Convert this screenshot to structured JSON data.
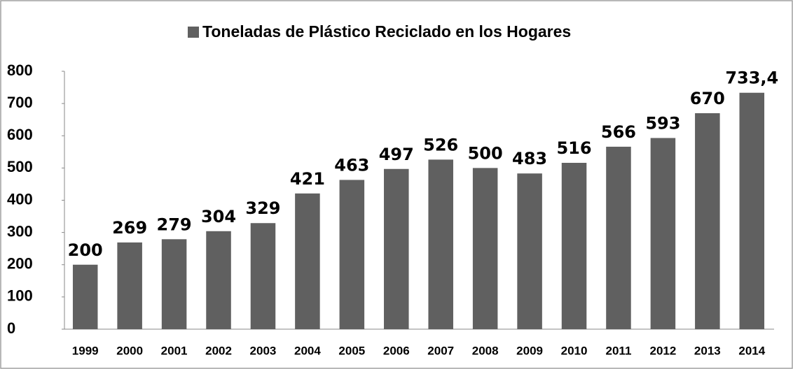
{
  "chart_data": {
    "type": "bar",
    "series": [
      {
        "name": "Toneladas de Plástico Reciclado en los Hogares",
        "color": "#606060",
        "values": [
          200,
          269,
          279,
          304,
          329,
          421,
          463,
          497,
          526,
          500,
          483,
          516,
          566,
          593,
          670,
          733.4
        ],
        "value_labels": [
          "200",
          "269",
          "279",
          "304",
          "329",
          "421",
          "463",
          "497",
          "526",
          "500",
          "483",
          "516",
          "566",
          "593",
          "670",
          "733,4"
        ]
      }
    ],
    "categories": [
      "1999",
      "2000",
      "2001",
      "2002",
      "2003",
      "2004",
      "2005",
      "2006",
      "2007",
      "2008",
      "2009",
      "2010",
      "2011",
      "2012",
      "2013",
      "2014"
    ],
    "ylim": [
      0,
      800
    ],
    "yticks": [
      0,
      100,
      200,
      300,
      400,
      500,
      600,
      700,
      800
    ],
    "grid": false,
    "legend": "top"
  }
}
